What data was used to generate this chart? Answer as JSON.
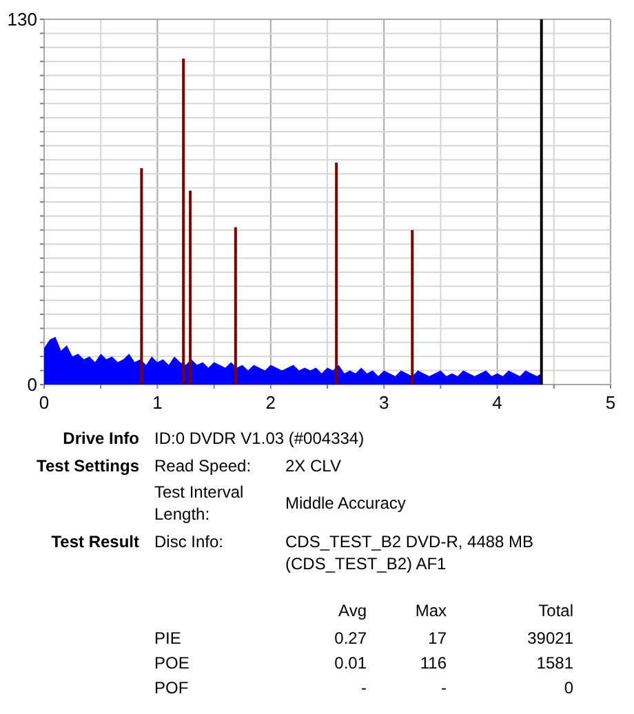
{
  "chart_data": [
    {
      "type": "area",
      "xlim": [
        0,
        5
      ],
      "ylim": [
        0,
        130
      ],
      "xticks": [
        0,
        {
          "value": 0.5,
          "label": null
        },
        1,
        {
          "value": 1.5,
          "label": null
        },
        2,
        {
          "value": 2.5,
          "label": null
        },
        3,
        {
          "value": 3.5,
          "label": null
        },
        4,
        {
          "value": 4.5,
          "label": null
        },
        5
      ],
      "yticks": [
        0,
        {
          "value": 5,
          "label": null
        },
        {
          "value": 10,
          "label": null
        },
        {
          "value": 15,
          "label": null
        },
        {
          "value": 20,
          "label": null
        },
        {
          "value": 25,
          "label": null
        },
        {
          "value": 30,
          "label": null
        },
        {
          "value": 35,
          "label": null
        },
        {
          "value": 40,
          "label": null
        },
        {
          "value": 45,
          "label": null
        },
        {
          "value": 50,
          "label": null
        },
        {
          "value": 55,
          "label": null
        },
        {
          "value": 60,
          "label": null
        },
        {
          "value": 65,
          "label": null
        },
        {
          "value": 70,
          "label": null
        },
        {
          "value": 75,
          "label": null
        },
        {
          "value": 80,
          "label": null
        },
        {
          "value": 85,
          "label": null
        },
        {
          "value": 90,
          "label": null
        },
        {
          "value": 95,
          "label": null
        },
        {
          "value": 100,
          "label": null
        },
        {
          "value": 105,
          "label": null
        },
        {
          "value": 110,
          "label": null
        },
        {
          "value": 115,
          "label": null
        },
        {
          "value": 120,
          "label": null
        },
        {
          "value": 125,
          "label": null
        },
        130
      ],
      "grid": true,
      "series": [
        {
          "type": "area",
          "color": "#0000ff",
          "x": [
            0,
            0.05,
            0.1,
            0.15,
            0.2,
            0.25,
            0.3,
            0.35,
            0.4,
            0.45,
            0.5,
            0.55,
            0.6,
            0.65,
            0.7,
            0.75,
            0.8,
            0.85,
            0.9,
            0.95,
            1,
            1.05,
            1.1,
            1.15,
            1.2,
            1.25,
            1.3,
            1.35,
            1.4,
            1.45,
            1.5,
            1.55,
            1.6,
            1.65,
            1.7,
            1.75,
            1.8,
            1.85,
            1.9,
            1.95,
            2,
            2.05,
            2.1,
            2.15,
            2.2,
            2.25,
            2.3,
            2.35,
            2.4,
            2.45,
            2.5,
            2.55,
            2.6,
            2.65,
            2.7,
            2.75,
            2.8,
            2.85,
            2.9,
            2.95,
            3,
            3.05,
            3.1,
            3.15,
            3.2,
            3.25,
            3.3,
            3.35,
            3.4,
            3.45,
            3.5,
            3.55,
            3.6,
            3.65,
            3.7,
            3.75,
            3.8,
            3.85,
            3.9,
            3.95,
            4,
            4.05,
            4.1,
            4.15,
            4.2,
            4.25,
            4.3,
            4.35,
            4.39
          ],
          "values": [
            13,
            16,
            17,
            12,
            14,
            10,
            11,
            9,
            10,
            8,
            11,
            9,
            10,
            8,
            9,
            11,
            8,
            9,
            7,
            10,
            8,
            9,
            7,
            10,
            8,
            7,
            9,
            7,
            8,
            6,
            8,
            7,
            6,
            8,
            6,
            7,
            5,
            7,
            6,
            5,
            7,
            6,
            5,
            6,
            7,
            5,
            6,
            5,
            6,
            4,
            6,
            5,
            7,
            4,
            5,
            4,
            6,
            4,
            5,
            3,
            5,
            4,
            3,
            5,
            4,
            3,
            5,
            4,
            3,
            4,
            5,
            3,
            4,
            3,
            5,
            4,
            3,
            4,
            5,
            3,
            4,
            3,
            5,
            4,
            3,
            5,
            4,
            3,
            4
          ]
        },
        {
          "type": "bar",
          "color": "#800000",
          "x": [
            0.86,
            1.23,
            1.29,
            1.69,
            2.58,
            3.25
          ],
          "values": [
            77,
            116,
            69,
            56,
            79,
            55
          ]
        }
      ],
      "ref_lines": [
        {
          "axis": "x",
          "value": 4.39,
          "color": "#000000"
        }
      ]
    },
    {
      "type": "other",
      "annotations": [
        "Drive Info",
        "ID:0 DVDR V1.03 (#004334)",
        "Test Settings",
        "Read Speed:",
        "2X CLV",
        "Test Interval Length:",
        "Middle Accuracy",
        "Test Result",
        "Disc Info:",
        "CDS_TEST_B2 DVD-R, 4488 MB",
        "(CDS_TEST_B2) AF1",
        "Avg",
        "Max",
        "Total",
        "PIE",
        "0.27",
        "17",
        "39021",
        "POE",
        "0.01",
        "116",
        "1581",
        "POF",
        "-",
        "-",
        "0"
      ]
    }
  ]
}
